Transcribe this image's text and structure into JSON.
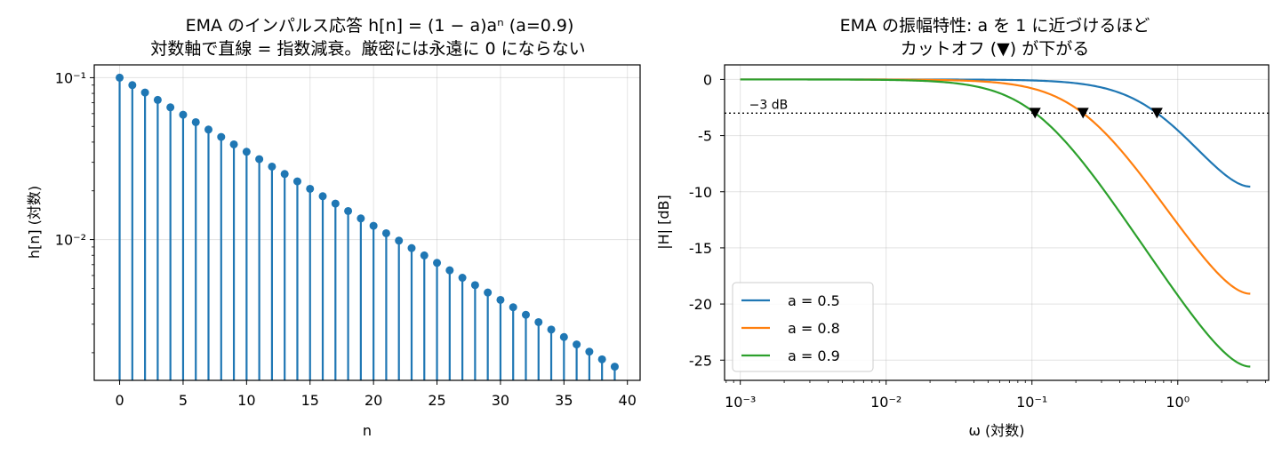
{
  "chart_data": [
    {
      "type": "stem",
      "title_line1": "EMA のインパルス応答 h[n] = (1 − a)aⁿ (a=0.9)",
      "title_line2": "対数軸で直線 = 指数減衰。厳密には永遠に 0 にならない",
      "xlabel": "n",
      "ylabel": "h[n] (対数)",
      "yscale": "log",
      "xlim": [
        -2,
        41
      ],
      "ylim": [
        0.00135,
        0.12
      ],
      "grid": true,
      "a": 0.9,
      "x_ticks": [
        0,
        5,
        10,
        15,
        20,
        25,
        30,
        35,
        40
      ],
      "x_tick_labels": [
        "0",
        "5",
        "10",
        "15",
        "20",
        "25",
        "30",
        "35",
        "40"
      ],
      "y_ticks": [
        0.1,
        0.01
      ],
      "y_tick_labels": [
        "10⁻¹",
        "10⁻²"
      ],
      "color": "#1f77b4",
      "x": [
        0,
        1,
        2,
        3,
        4,
        5,
        6,
        7,
        8,
        9,
        10,
        11,
        12,
        13,
        14,
        15,
        16,
        17,
        18,
        19,
        20,
        21,
        22,
        23,
        24,
        25,
        26,
        27,
        28,
        29,
        30,
        31,
        32,
        33,
        34,
        35,
        36,
        37,
        38,
        39
      ],
      "values": [
        0.1,
        0.09,
        0.081,
        0.0729,
        0.06561,
        0.05905,
        0.05314,
        0.04783,
        0.04305,
        0.03874,
        0.03487,
        0.03138,
        0.02824,
        0.02542,
        0.02288,
        0.02059,
        0.01853,
        0.01668,
        0.01501,
        0.01351,
        0.01216,
        0.01094,
        0.00985,
        0.00886,
        0.00798,
        0.00718,
        0.00646,
        0.00581,
        0.00523,
        0.00471,
        0.00424,
        0.00382,
        0.00343,
        0.00309,
        0.00278,
        0.0025,
        0.00225,
        0.00203,
        0.00182,
        0.00164
      ]
    },
    {
      "type": "line",
      "title_line1": "EMA の振幅特性: a を 1 に近づけるほど",
      "title_line2": "カットオフ (▼) が下がる",
      "xlabel": "ω (対数)",
      "ylabel": "|H| [dB]",
      "xscale": "log",
      "xlim": [
        0.00078,
        4.2
      ],
      "ylim": [
        -26.8,
        1.3
      ],
      "grid": true,
      "x_ticks": [
        0.001,
        0.01,
        0.1,
        1
      ],
      "x_tick_labels": [
        "10⁻³",
        "10⁻²",
        "10⁻¹",
        "10⁰"
      ],
      "y_ticks": [
        0,
        -5,
        -10,
        -15,
        -20,
        -25
      ],
      "y_tick_labels": [
        "0",
        "-5",
        "-10",
        "-15",
        "-20",
        "-25"
      ],
      "omega_range": [
        0.001,
        3.14159
      ],
      "reference_line": {
        "y": -3,
        "label": "−3 dB"
      },
      "legend_position": "lower-left",
      "series": [
        {
          "name": "a = 0.5",
          "a": 0.5,
          "color": "#1f77b4",
          "cutoff": 0.72,
          "endpoint_db": -9.5
        },
        {
          "name": "a = 0.8",
          "a": 0.8,
          "color": "#ff7f0e",
          "cutoff": 0.224,
          "endpoint_db": -19.1
        },
        {
          "name": "a = 0.9",
          "a": 0.9,
          "color": "#2ca02c",
          "cutoff": 0.105,
          "endpoint_db": -25.6
        }
      ]
    }
  ]
}
